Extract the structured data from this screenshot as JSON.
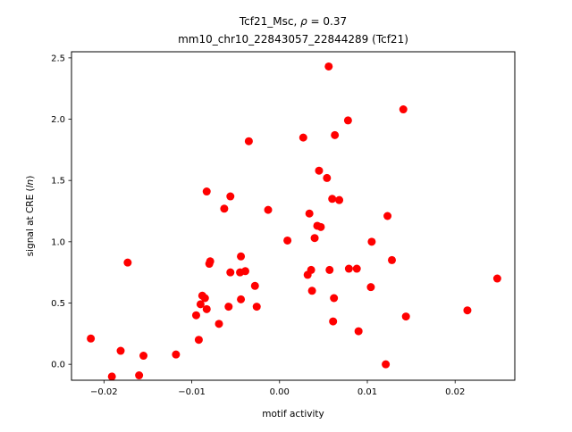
{
  "chart_data": {
    "type": "scatter",
    "title_prefix": "Tcf21_Msc, ",
    "title_rho_symbol": "ρ",
    "title_rho_value": " = 0.37",
    "subtitle": "mm10_chr10_22843057_22844289 (Tcf21)",
    "xlabel": "motif activity",
    "ylabel_prefix": "signal at CRE (",
    "ylabel_italic": "ln",
    "ylabel_suffix": ")",
    "xlim": [
      -0.0237,
      0.0268
    ],
    "ylim": [
      -0.13,
      2.55
    ],
    "x_ticks": [
      -0.02,
      -0.01,
      0.0,
      0.01,
      0.02
    ],
    "x_tick_labels": [
      "−0.02",
      "−0.01",
      "0.00",
      "0.01",
      "0.02"
    ],
    "y_ticks": [
      0.0,
      0.5,
      1.0,
      1.5,
      2.0,
      2.5
    ],
    "y_tick_labels": [
      "0.0",
      "0.5",
      "1.0",
      "1.5",
      "2.0",
      "2.5"
    ],
    "grid": false,
    "legend": "none",
    "marker_color": "#ff0000",
    "points": [
      {
        "x": -0.0215,
        "y": 0.21
      },
      {
        "x": -0.0191,
        "y": -0.1
      },
      {
        "x": -0.0181,
        "y": 0.11
      },
      {
        "x": -0.0173,
        "y": 0.83
      },
      {
        "x": -0.016,
        "y": -0.09
      },
      {
        "x": -0.0155,
        "y": 0.07
      },
      {
        "x": -0.0118,
        "y": 0.08
      },
      {
        "x": -0.0095,
        "y": 0.4
      },
      {
        "x": -0.0092,
        "y": 0.2
      },
      {
        "x": -0.009,
        "y": 0.49
      },
      {
        "x": -0.0088,
        "y": 0.56
      },
      {
        "x": -0.0085,
        "y": 0.54
      },
      {
        "x": -0.0083,
        "y": 0.45
      },
      {
        "x": -0.0083,
        "y": 1.41
      },
      {
        "x": -0.008,
        "y": 0.82
      },
      {
        "x": -0.0079,
        "y": 0.84
      },
      {
        "x": -0.0069,
        "y": 0.33
      },
      {
        "x": -0.0063,
        "y": 1.27
      },
      {
        "x": -0.0058,
        "y": 0.47
      },
      {
        "x": -0.0056,
        "y": 0.75
      },
      {
        "x": -0.0056,
        "y": 1.37
      },
      {
        "x": -0.0045,
        "y": 0.75
      },
      {
        "x": -0.0044,
        "y": 0.88
      },
      {
        "x": -0.0044,
        "y": 0.53
      },
      {
        "x": -0.0039,
        "y": 0.76
      },
      {
        "x": -0.0035,
        "y": 1.82
      },
      {
        "x": -0.0028,
        "y": 0.64
      },
      {
        "x": -0.0026,
        "y": 0.47
      },
      {
        "x": -0.0013,
        "y": 1.26
      },
      {
        "x": 0.0009,
        "y": 1.01
      },
      {
        "x": 0.0027,
        "y": 1.85
      },
      {
        "x": 0.0032,
        "y": 0.73
      },
      {
        "x": 0.0034,
        "y": 1.23
      },
      {
        "x": 0.0036,
        "y": 0.77
      },
      {
        "x": 0.0037,
        "y": 0.6
      },
      {
        "x": 0.004,
        "y": 1.03
      },
      {
        "x": 0.0043,
        "y": 1.13
      },
      {
        "x": 0.0045,
        "y": 1.58
      },
      {
        "x": 0.0047,
        "y": 1.12
      },
      {
        "x": 0.0054,
        "y": 1.52
      },
      {
        "x": 0.0056,
        "y": 2.43
      },
      {
        "x": 0.0057,
        "y": 0.77
      },
      {
        "x": 0.006,
        "y": 1.35
      },
      {
        "x": 0.0061,
        "y": 0.35
      },
      {
        "x": 0.0062,
        "y": 0.54
      },
      {
        "x": 0.0063,
        "y": 1.87
      },
      {
        "x": 0.0068,
        "y": 1.34
      },
      {
        "x": 0.0078,
        "y": 1.99
      },
      {
        "x": 0.0079,
        "y": 0.78
      },
      {
        "x": 0.0088,
        "y": 0.78
      },
      {
        "x": 0.009,
        "y": 0.27
      },
      {
        "x": 0.0104,
        "y": 0.63
      },
      {
        "x": 0.0105,
        "y": 1.0
      },
      {
        "x": 0.0121,
        "y": 0.0
      },
      {
        "x": 0.0123,
        "y": 1.21
      },
      {
        "x": 0.0128,
        "y": 0.85
      },
      {
        "x": 0.0141,
        "y": 2.08
      },
      {
        "x": 0.0144,
        "y": 0.39
      },
      {
        "x": 0.0214,
        "y": 0.44
      },
      {
        "x": 0.0248,
        "y": 0.7
      }
    ]
  }
}
